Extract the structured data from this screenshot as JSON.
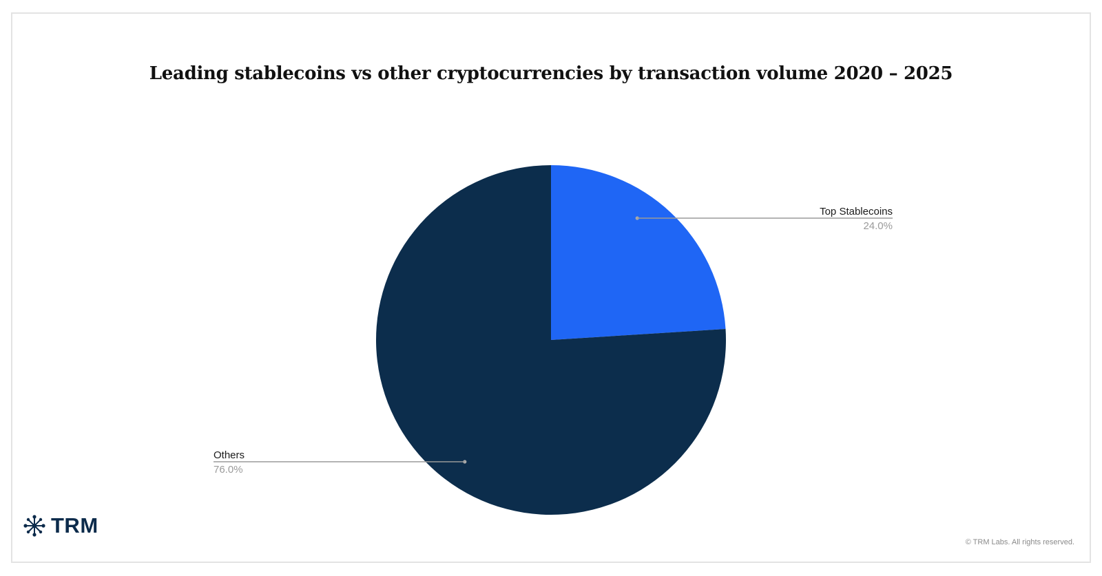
{
  "chart_data": {
    "type": "pie",
    "title": "Leading stablecoins vs other cryptocurrencies by transaction volume 2020 – 2025",
    "slices": [
      {
        "label": "Top Stablecoins",
        "value": 24.0,
        "value_label": "24.0%",
        "color": "#1f66f5"
      },
      {
        "label": "Others",
        "value": 76.0,
        "value_label": "76.0%",
        "color": "#0c2d4c"
      }
    ],
    "legend": "none",
    "label_style": "callout"
  },
  "brand": {
    "name": "TRM",
    "icon": "trm-network-icon",
    "color": "#0c2b4b"
  },
  "footer": {
    "copyright": "© TRM Labs. All rights reserved."
  }
}
